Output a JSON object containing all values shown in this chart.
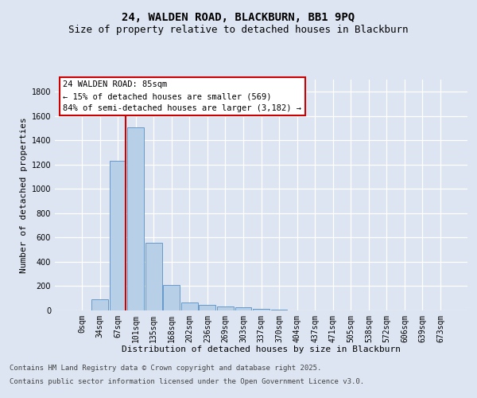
{
  "title_line1": "24, WALDEN ROAD, BLACKBURN, BB1 9PQ",
  "title_line2": "Size of property relative to detached houses in Blackburn",
  "xlabel": "Distribution of detached houses by size in Blackburn",
  "ylabel": "Number of detached properties",
  "bar_labels": [
    "0sqm",
    "34sqm",
    "67sqm",
    "101sqm",
    "135sqm",
    "168sqm",
    "202sqm",
    "236sqm",
    "269sqm",
    "303sqm",
    "337sqm",
    "370sqm",
    "404sqm",
    "437sqm",
    "471sqm",
    "505sqm",
    "538sqm",
    "572sqm",
    "606sqm",
    "639sqm",
    "673sqm"
  ],
  "bar_values": [
    0,
    90,
    1235,
    1510,
    560,
    210,
    65,
    45,
    35,
    27,
    12,
    5,
    0,
    0,
    0,
    0,
    0,
    0,
    0,
    0,
    0
  ],
  "bar_color": "#b8cfe8",
  "bar_edge_color": "#6699cc",
  "vline_color": "#cc0000",
  "vline_pos": 2.43,
  "ylim_max": 1900,
  "yticks": [
    0,
    200,
    400,
    600,
    800,
    1000,
    1200,
    1400,
    1600,
    1800
  ],
  "annotation_text": "24 WALDEN ROAD: 85sqm\n← 15% of detached houses are smaller (569)\n84% of semi-detached houses are larger (3,182) →",
  "footnote1": "Contains HM Land Registry data © Crown copyright and database right 2025.",
  "footnote2": "Contains public sector information licensed under the Open Government Licence v3.0.",
  "bg_color": "#dde5f2",
  "grid_color": "#ffffff",
  "title_fontsize": 10,
  "subtitle_fontsize": 9,
  "axis_label_fontsize": 8,
  "tick_fontsize": 7,
  "footnote_fontsize": 6.5,
  "ann_fontsize": 7.5
}
